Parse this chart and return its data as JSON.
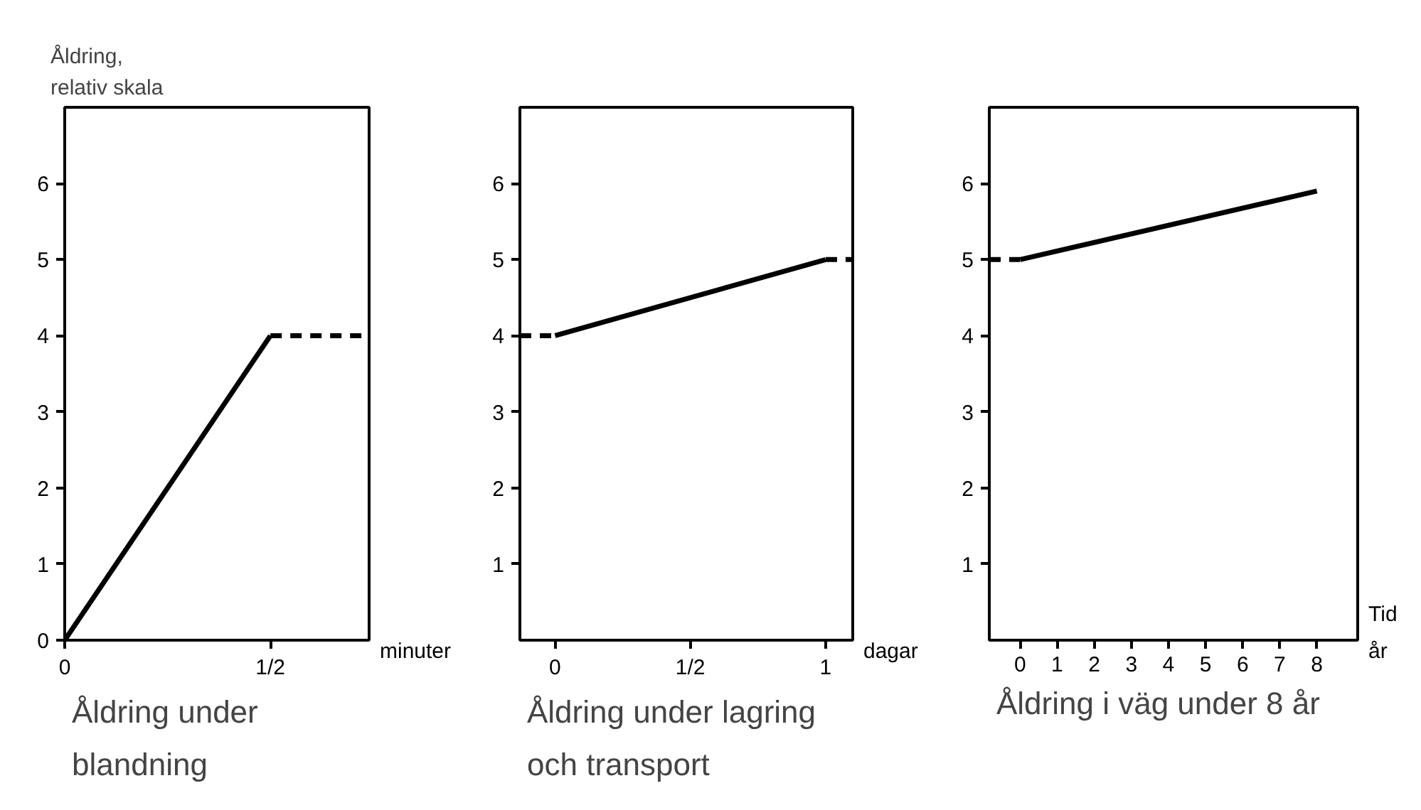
{
  "chart_data": [
    {
      "type": "line",
      "ylabel": "Åldring,\nrelativ skala",
      "xlabel": "Åldring under\nblandning",
      "xlim": [
        0,
        0.74
      ],
      "ylim": [
        0,
        7
      ],
      "xticks": [
        0,
        {
          "value": 0.5,
          "label": "1/2"
        }
      ],
      "yticks": [
        0,
        1,
        2,
        3,
        4,
        5,
        6
      ],
      "grid": false,
      "annotations": [
        "minuter"
      ],
      "series": [
        {
          "color": "#000000",
          "x": [
            0,
            0.5
          ],
          "values": [
            0,
            4
          ],
          "line_style": "solid"
        },
        {
          "color": "#000000",
          "x": [
            0.5,
            0.74
          ],
          "values": [
            4,
            4
          ],
          "line_style": "dashed"
        }
      ]
    },
    {
      "type": "line",
      "xlabel": "Åldring under lagring\noch transport",
      "xlim": [
        -0.13,
        1.1
      ],
      "ylim": [
        0,
        7
      ],
      "xticks": [
        0,
        {
          "value": 0.5,
          "label": "1/2"
        },
        1
      ],
      "yticks": [
        1,
        2,
        3,
        4,
        5,
        6
      ],
      "grid": false,
      "annotations": [
        "dagar"
      ],
      "series": [
        {
          "color": "#000000",
          "x": [
            0,
            1
          ],
          "values": [
            4,
            5
          ],
          "line_style": "solid"
        },
        {
          "color": "#000000",
          "x": [
            -0.13,
            0
          ],
          "values": [
            4,
            4
          ],
          "line_style": "dashed"
        },
        {
          "color": "#000000",
          "x": [
            1,
            1.1
          ],
          "values": [
            5,
            5
          ],
          "line_style": "dashed"
        }
      ]
    },
    {
      "type": "line",
      "xlabel": "Åldring i väg under 8 år",
      "xlim": [
        -0.83,
        9.1
      ],
      "ylim": [
        0,
        7
      ],
      "xticks": [
        0,
        1,
        2,
        3,
        4,
        5,
        6,
        7,
        8
      ],
      "yticks": [
        1,
        2,
        3,
        4,
        5,
        6
      ],
      "grid": false,
      "annotations": [
        "Tid",
        "år"
      ],
      "series": [
        {
          "color": "#000000",
          "x": [
            0,
            8
          ],
          "values": [
            5,
            5.9
          ],
          "line_style": "solid"
        },
        {
          "color": "#000000",
          "x": [
            -0.83,
            0
          ],
          "values": [
            5,
            5
          ],
          "line_style": "dashed"
        }
      ]
    }
  ]
}
